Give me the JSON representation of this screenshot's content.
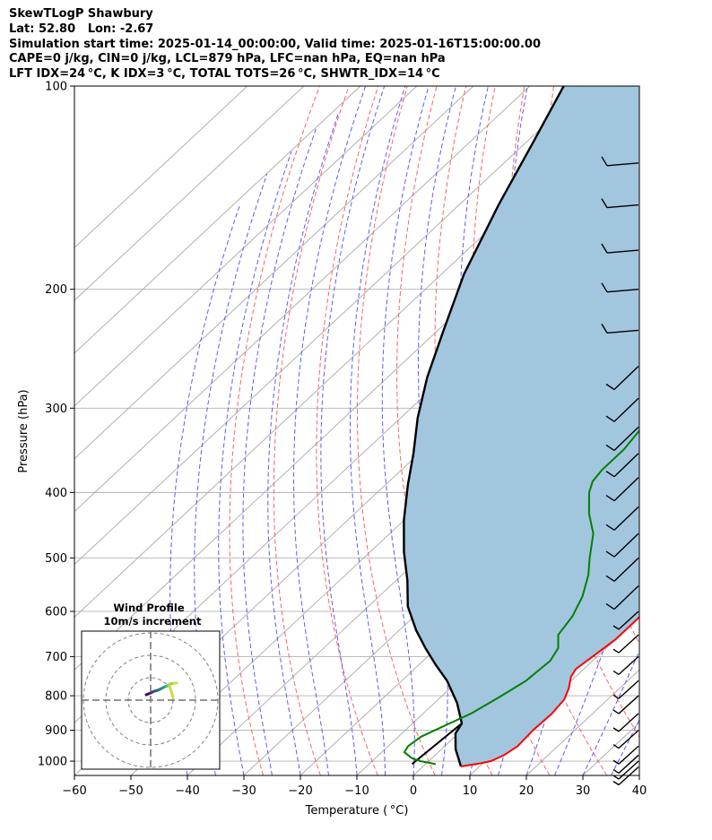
{
  "header": {
    "line1": "SkewTLogP Shawbury",
    "line2": "Lat: 52.80   Lon: -2.67",
    "line3": "Simulation start time: 2025-01-14_00:00:00, Valid time: 2025-01-16T15:00:00.00",
    "line4": "CAPE=0 j/kg, CIN=0 j/kg, LCL=879 hPa, LFC=nan hPa, EQ=nan hPa",
    "line5": "LFT IDX=24$^\\circ$C, K IDX=3$^\\circ$C, TOTAL TOTS=26$^\\circ$C, SHWTR_IDX=14$^\\circ$C"
  },
  "header_display": {
    "line5": "LFT IDX=24 °C, K IDX=3 °C, TOTAL TOTS=26 °C, SHWTR_IDX=14 °C"
  },
  "chart_data": {
    "type": "line",
    "subtype": "skew-t log-p",
    "xlabel": "Temperature ( °C)",
    "ylabel": "Pressure (hPa)",
    "xlim": [
      -60,
      40
    ],
    "ylim_hPa": [
      1050,
      100
    ],
    "y_scale": "log",
    "grid": true,
    "x_ticks": [
      "−60",
      "−50",
      "−40",
      "−30",
      "−20",
      "−10",
      "0",
      "10",
      "20",
      "30",
      "40"
    ],
    "y_ticks": [
      "100",
      "200",
      "300",
      "400",
      "500",
      "600",
      "700",
      "800",
      "900",
      "1000"
    ],
    "series": [
      {
        "name": "",
        "role": "temperature",
        "color": "#ff0000",
        "points": [
          [
            6.7,
            1018
          ],
          [
            9,
            1010
          ],
          [
            11,
            1000
          ],
          [
            12.2,
            980
          ],
          [
            12.9,
            950
          ],
          [
            12.6,
            900
          ],
          [
            12.8,
            850
          ],
          [
            12.3,
            810
          ],
          [
            11,
            780
          ],
          [
            9.2,
            750
          ],
          [
            8.6,
            730
          ],
          [
            9.2,
            700
          ],
          [
            10,
            660
          ],
          [
            10,
            600
          ],
          [
            8.5,
            550
          ],
          [
            7,
            500
          ],
          [
            5,
            460
          ],
          [
            3,
            430
          ],
          [
            0.5,
            400
          ],
          [
            -2,
            370
          ],
          [
            -3.5,
            350
          ],
          [
            -6.5,
            320
          ],
          [
            -8.5,
            300
          ],
          [
            -11,
            280
          ],
          [
            -13.5,
            260
          ],
          [
            -15.5,
            240
          ],
          [
            -15.5,
            225
          ],
          [
            -15.5,
            210
          ],
          [
            -15,
            195
          ],
          [
            -14,
            185
          ],
          [
            -12.5,
            175
          ],
          [
            -10.5,
            165
          ],
          [
            -8,
            155
          ],
          [
            -6,
            148
          ],
          [
            -4,
            143
          ],
          [
            -2.5,
            138
          ],
          [
            -1.2,
            130
          ],
          [
            -0.4,
            123
          ],
          [
            0.8,
            117
          ],
          [
            1.5,
            112
          ],
          [
            2.2,
            107
          ],
          [
            3,
            100
          ]
        ]
      },
      {
        "name": "",
        "role": "dewpoint",
        "color": "#008000",
        "points": [
          [
            1.8,
            1010
          ],
          [
            -1.5,
            1000
          ],
          [
            -3.5,
            990
          ],
          [
            -6,
            970
          ],
          [
            -6.5,
            950
          ],
          [
            -6,
            920
          ],
          [
            -3.5,
            880
          ],
          [
            -1.5,
            850
          ],
          [
            0.5,
            800
          ],
          [
            2,
            760
          ],
          [
            2.5,
            710
          ],
          [
            1.5,
            680
          ],
          [
            -1,
            650
          ],
          [
            -2,
            610
          ],
          [
            -4,
            570
          ],
          [
            -7,
            530
          ],
          [
            -10,
            500
          ],
          [
            -14,
            460
          ],
          [
            -18.5,
            430
          ],
          [
            -22.5,
            400
          ],
          [
            -24,
            385
          ],
          [
            -24.5,
            370
          ],
          [
            -24.5,
            345
          ],
          [
            -25.5,
            320
          ],
          [
            -27,
            300
          ],
          [
            -27,
            290
          ],
          [
            -26,
            275
          ],
          [
            -25,
            260
          ],
          [
            -24.5,
            250
          ],
          [
            -27,
            235
          ],
          [
            -31,
            220
          ],
          [
            -31,
            210
          ],
          [
            -29,
            200
          ],
          [
            -26.5,
            190
          ],
          [
            -24,
            182
          ],
          [
            -24,
            175
          ],
          [
            -25,
            165
          ],
          [
            -26,
            158
          ],
          [
            -28.5,
            150
          ],
          [
            -28,
            145
          ],
          [
            -26.8,
            140
          ],
          [
            -25.5,
            134
          ],
          [
            -24.5,
            129
          ],
          [
            -23.5,
            124
          ],
          [
            -22.6,
            119
          ],
          [
            -21.8,
            114
          ],
          [
            -21,
            109
          ],
          [
            -20,
            100
          ]
        ]
      },
      {
        "name": "",
        "role": "parcel",
        "color": "#000000",
        "points": [
          [
            6.7,
            1018
          ],
          [
            2.5,
            960
          ],
          [
            -0.5,
            910
          ],
          [
            -1.3,
            879
          ],
          [
            -6,
            820
          ],
          [
            -12,
            760
          ],
          [
            -17,
            720
          ],
          [
            -22,
            680
          ],
          [
            -27,
            640
          ],
          [
            -33,
            590
          ],
          [
            -38,
            540
          ],
          [
            -44,
            490
          ],
          [
            -50,
            440
          ],
          [
            -56,
            390
          ],
          [
            -61,
            350
          ],
          [
            -67,
            310
          ],
          [
            -73,
            270
          ],
          [
            -79,
            230
          ],
          [
            -86,
            190
          ],
          [
            -93,
            150
          ],
          [
            -99,
            120
          ],
          [
            -104,
            100
          ]
        ]
      }
    ],
    "parcel_start": [
      -2.4,
      1010
    ],
    "cape_cin_shading": "#a3c6df",
    "reference_lines": {
      "dry_adiabats": "red dashed",
      "moist_adiabats": "blue dashed",
      "mixing_ratio": "blue dashed",
      "isotherms": "grey"
    },
    "wind_barbs": {
      "label": "",
      "note": "barbs along right edge of plot"
    },
    "hodograph": {
      "title": "Wind Profile",
      "subtitle": "10m/s increment",
      "type": "polar"
    }
  }
}
